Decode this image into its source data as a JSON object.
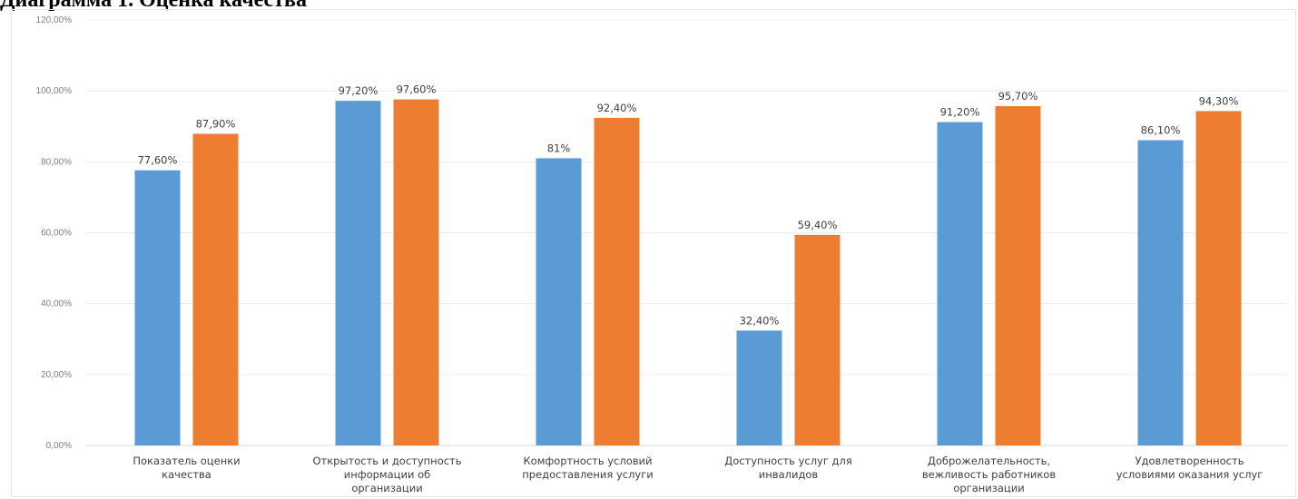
{
  "page": {
    "title": "Диаграмма 1. Оценка качества"
  },
  "chart_data": {
    "type": "bar",
    "title": "",
    "xlabel": "",
    "ylabel": "",
    "ylim": [
      0,
      1.2
    ],
    "yticks": [
      0,
      0.2,
      0.4,
      0.6,
      0.8,
      1.0,
      1.2
    ],
    "ytick_labels": [
      "0,00%",
      "20,00%",
      "40,00%",
      "60,00%",
      "80,00%",
      "100,00%",
      "120,00%"
    ],
    "grid": true,
    "legend": "none",
    "categories": [
      [
        "Показатель оценки",
        "качества"
      ],
      [
        "Открытость и доступность",
        "информации об",
        "организации"
      ],
      [
        "Комфортность условий",
        "предоставления услуги"
      ],
      [
        "Доступность услуг для",
        "инвалидов"
      ],
      [
        "Доброжелательность,",
        "вежливость работников",
        "организации"
      ],
      [
        "Удовлетворенность",
        "условиями оказания услуг"
      ]
    ],
    "series": [
      {
        "color": "#5b9bd5",
        "values": [
          0.776,
          0.972,
          0.81,
          0.324,
          0.912,
          0.861
        ],
        "labels": [
          "77,60%",
          "97,20%",
          "81%",
          "32,40%",
          "91,20%",
          "86,10%"
        ]
      },
      {
        "color": "#ed7d31",
        "values": [
          0.879,
          0.976,
          0.924,
          0.594,
          0.957,
          0.943
        ],
        "labels": [
          "87,90%",
          "97,60%",
          "92,40%",
          "59,40%",
          "95,70%",
          "94,30%"
        ]
      }
    ]
  }
}
